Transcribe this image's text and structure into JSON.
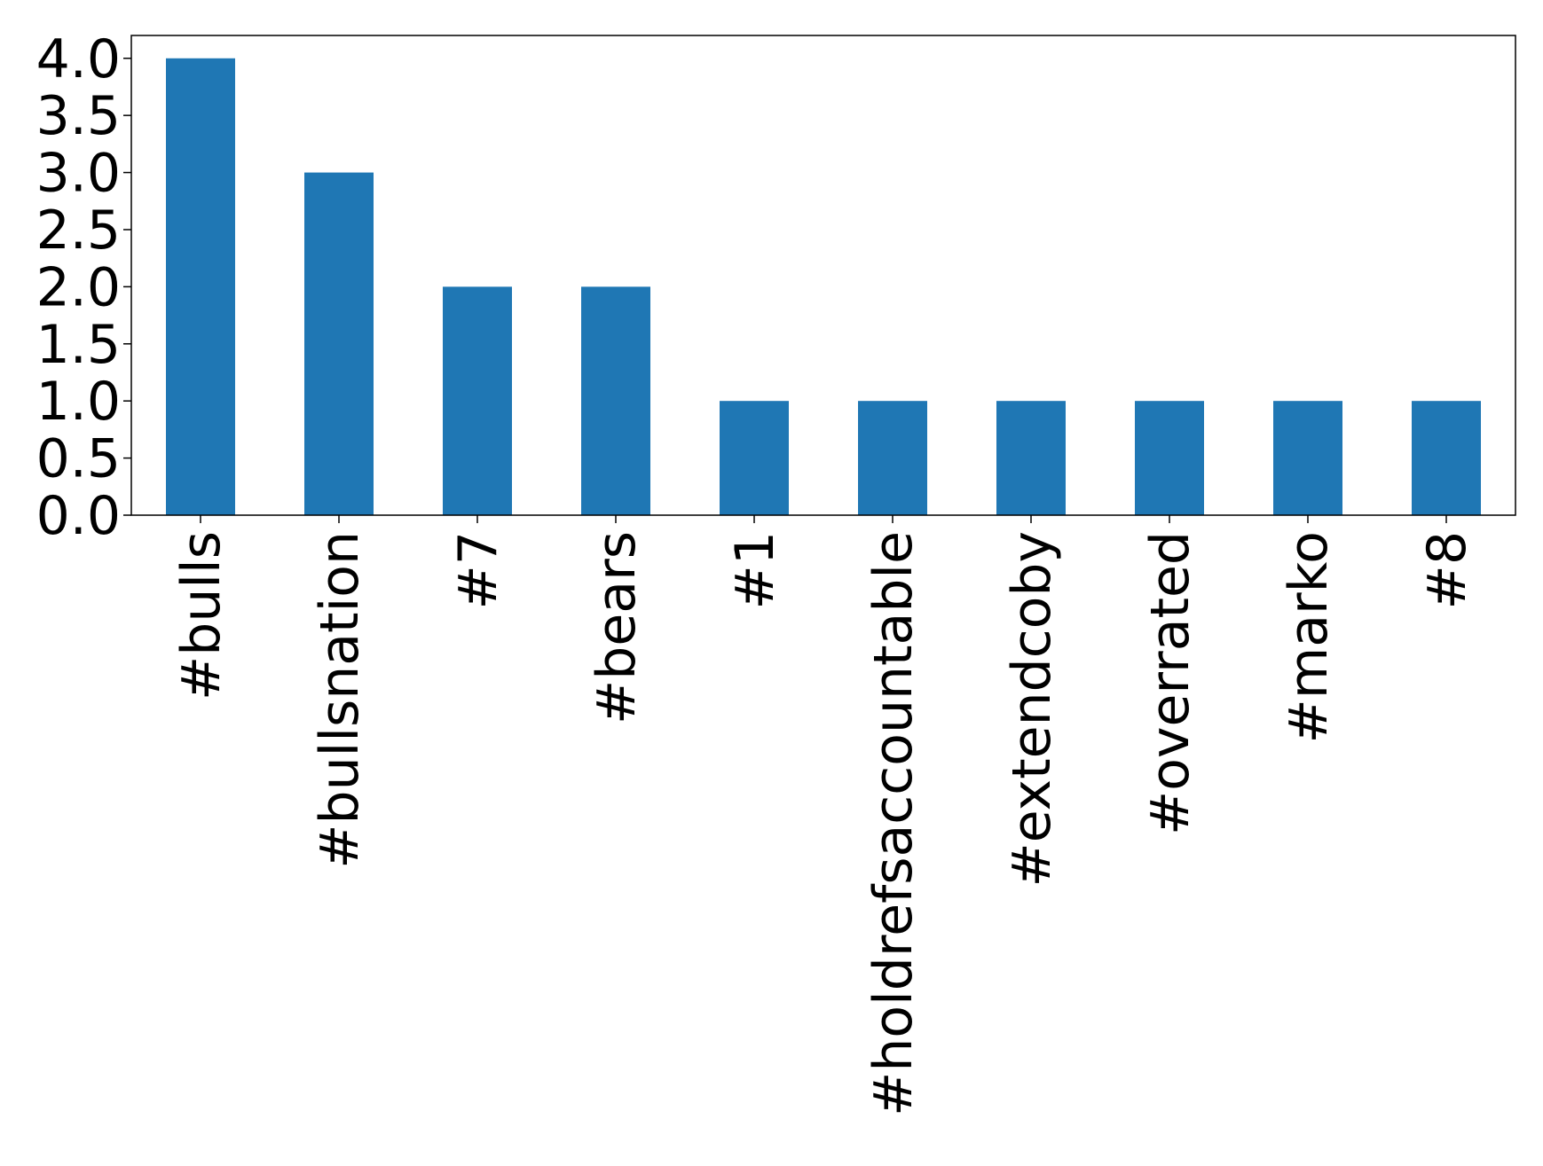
{
  "chart_data": {
    "type": "bar",
    "categories": [
      "#bulls",
      "#bullsnation",
      "#7",
      "#bears",
      "#1",
      "#holdrefsaccountable",
      "#extendcoby",
      "#overrated",
      "#marko",
      "#8"
    ],
    "values": [
      4,
      3,
      2,
      2,
      1,
      1,
      1,
      1,
      1,
      1
    ],
    "color": "#1f77b4",
    "ylim": [
      0,
      4.2
    ],
    "yticks": [
      {
        "value": 0,
        "label": "0.0"
      },
      0.5,
      {
        "value": 1,
        "label": "1.0"
      },
      1.5,
      {
        "value": 2,
        "label": "2.0"
      },
      2.5,
      {
        "value": 3,
        "label": "3.0"
      },
      3.5,
      {
        "value": 4,
        "label": "4.0"
      }
    ],
    "grid": false
  }
}
